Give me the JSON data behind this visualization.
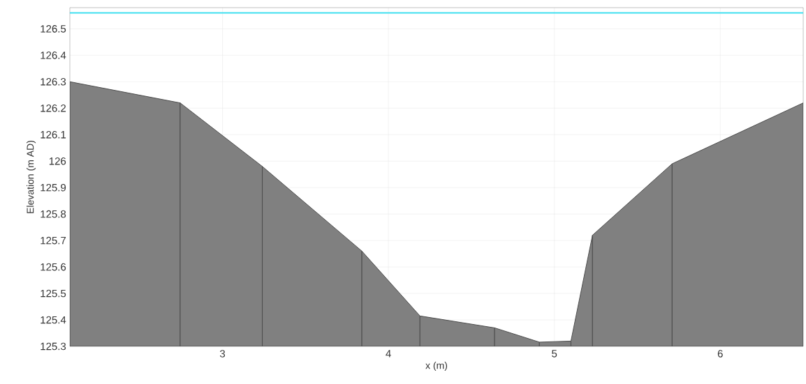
{
  "chart_data": {
    "type": "area",
    "xlabel": "x (m)",
    "ylabel": "Elevation (m AD)",
    "x": [
      2.08,
      2.745,
      3.24,
      3.84,
      4.19,
      4.64,
      4.91,
      5.1,
      5.23,
      5.71,
      6.5
    ],
    "series": [
      {
        "color": "#808080",
        "values": [
          126.3,
          126.22,
          125.98,
          125.66,
          125.415,
          125.37,
          125.316,
          125.32,
          125.72,
          125.99,
          126.22
        ]
      }
    ],
    "xlim": [
      2.08,
      6.5
    ],
    "ylim": [
      125.3,
      126.58
    ],
    "xticks": [
      3,
      4,
      5,
      6
    ],
    "yticks": [
      125.3,
      125.4,
      125.5,
      125.6,
      125.7,
      125.8,
      125.9,
      126,
      126.1,
      126.2,
      126.3,
      126.4,
      126.5
    ],
    "ref_lines": [
      {
        "axis": "y",
        "value": 126.56,
        "color": "#40e0f0"
      }
    ],
    "grid": true
  }
}
